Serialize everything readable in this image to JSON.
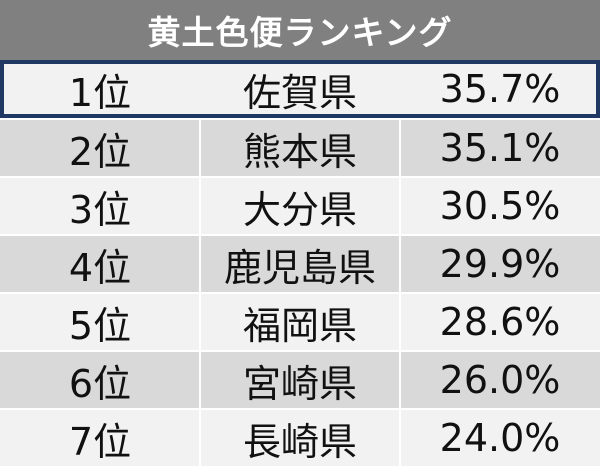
{
  "title": "黄土色便ランキング",
  "colors": {
    "header_bg": "#808080",
    "row_light": "#f2f2f2",
    "row_dark": "#d9d9d9",
    "highlight_border": "#1f3864"
  },
  "rows": [
    {
      "rank": "1位",
      "prefecture": "佐賀県",
      "percent": "35.7%"
    },
    {
      "rank": "2位",
      "prefecture": "熊本県",
      "percent": "35.1%"
    },
    {
      "rank": "3位",
      "prefecture": "大分県",
      "percent": "30.5%"
    },
    {
      "rank": "4位",
      "prefecture": "鹿児島県",
      "percent": "29.9%"
    },
    {
      "rank": "5位",
      "prefecture": "福岡県",
      "percent": "28.6%"
    },
    {
      "rank": "6位",
      "prefecture": "宮崎県",
      "percent": "26.0%"
    },
    {
      "rank": "7位",
      "prefecture": "長崎県",
      "percent": "24.0%"
    }
  ]
}
